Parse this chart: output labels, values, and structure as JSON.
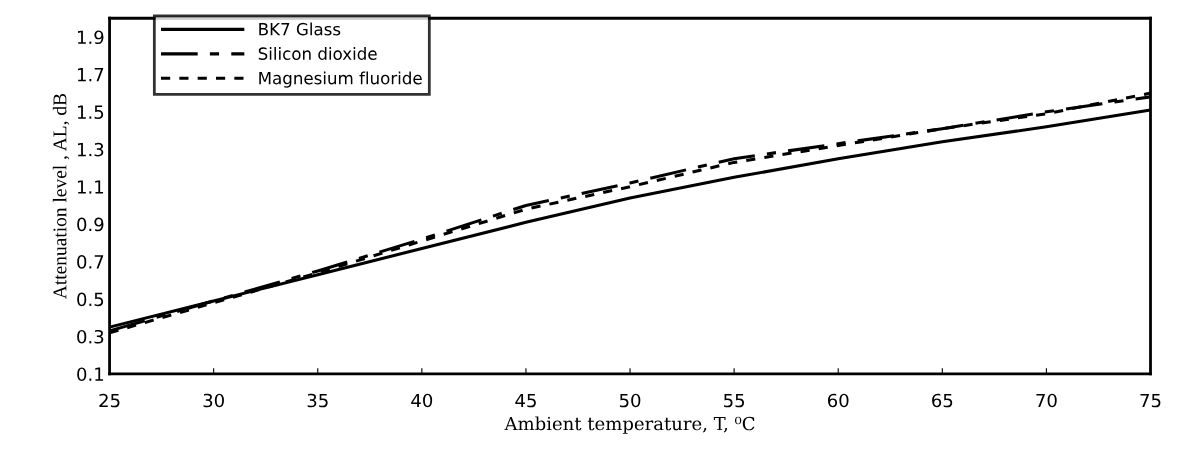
{
  "chart_data": {
    "type": "line",
    "xlabel": "Ambient temperature, T, ⁰C",
    "ylabel": "Attenuation level , AL, dB",
    "x": [
      25,
      30,
      35,
      40,
      45,
      50,
      55,
      60,
      65,
      70,
      75
    ],
    "series": [
      {
        "name": "BK7 Glass",
        "color": "#000000",
        "line_style": "solid",
        "values": [
          0.35,
          0.49,
          0.63,
          0.77,
          0.91,
          1.04,
          1.15,
          1.25,
          1.34,
          1.42,
          1.51
        ]
      },
      {
        "name": "Silicon dioxide",
        "color": "#000000",
        "line_style": "dashed",
        "values": [
          0.33,
          0.49,
          0.65,
          0.82,
          1.0,
          1.12,
          1.25,
          1.33,
          1.41,
          1.5,
          1.58
        ]
      },
      {
        "name": "Magnesium fluoride",
        "color": "#000000",
        "line_style": "dotted",
        "values": [
          0.32,
          0.48,
          0.64,
          0.81,
          0.98,
          1.1,
          1.23,
          1.32,
          1.41,
          1.49,
          1.6
        ]
      }
    ],
    "xlim": [
      25,
      75
    ],
    "xticks": [
      25,
      30,
      35,
      40,
      45,
      50,
      55,
      60,
      65,
      70,
      75
    ],
    "ylim": [
      0.1,
      2.0
    ],
    "yticks": [
      0.1,
      0.3,
      0.5,
      0.7,
      0.9,
      1.1,
      1.3,
      1.5,
      1.7,
      1.9
    ],
    "grid": false,
    "legend": "top left",
    "marker": "none"
  }
}
